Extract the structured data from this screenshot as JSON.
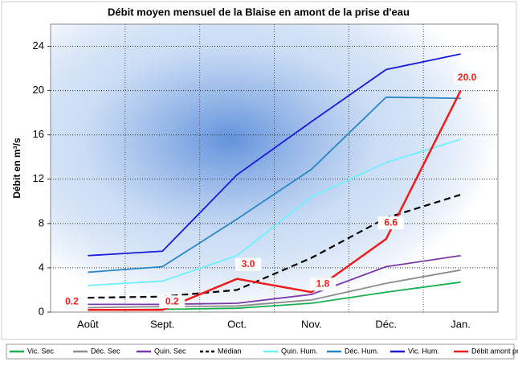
{
  "chart_data": {
    "type": "line",
    "title": "Débit moyen mensuel de la Blaise en amont de la prise d'eau",
    "y_label": "Débit en m³/s",
    "categories": [
      "Août",
      "Sept.",
      "Oct.",
      "Nov.",
      "Déc.",
      "Jan."
    ],
    "ylim": [
      0,
      26
    ],
    "yticks": [
      0,
      4,
      8,
      12,
      16,
      20,
      24
    ],
    "grid": true,
    "legend": "bottom",
    "series": [
      {
        "name": "Vic. Sec",
        "color": "#1aaf50",
        "values": [
          0.2,
          0.25,
          0.35,
          0.8,
          1.8,
          2.7
        ]
      },
      {
        "name": "Déc. Sec",
        "color": "#8c8c8c",
        "values": [
          0.4,
          0.5,
          0.55,
          1.1,
          2.6,
          3.8
        ]
      },
      {
        "name": "Quin. Sec",
        "color": "#7a3aa8",
        "values": [
          0.7,
          0.7,
          0.8,
          1.6,
          4.1,
          5.1
        ]
      },
      {
        "name": "Médian",
        "color": "#000000",
        "dashed": true,
        "values": [
          1.3,
          1.4,
          2.0,
          4.9,
          8.5,
          10.6
        ]
      },
      {
        "name": "Quin. Hum.",
        "color": "#6ff0ff",
        "values": [
          2.4,
          2.8,
          5.1,
          10.4,
          13.5,
          15.6
        ]
      },
      {
        "name": "Déc. Hum.",
        "color": "#2a86c4",
        "values": [
          3.6,
          4.1,
          8.4,
          12.9,
          19.4,
          19.3
        ]
      },
      {
        "name": "Vic. Hum.",
        "color": "#1a1ad8",
        "values": [
          5.1,
          5.5,
          12.4,
          17.2,
          21.9,
          23.3
        ]
      },
      {
        "name": "Débit amont prise",
        "color": "#ee1c1c",
        "values": [
          0.2,
          0.2,
          3.0,
          1.8,
          6.6,
          20.0
        ],
        "value_labels": [
          "0.2",
          "0.2",
          "3.0",
          "1.8",
          "6.6",
          "20.0"
        ]
      }
    ]
  }
}
